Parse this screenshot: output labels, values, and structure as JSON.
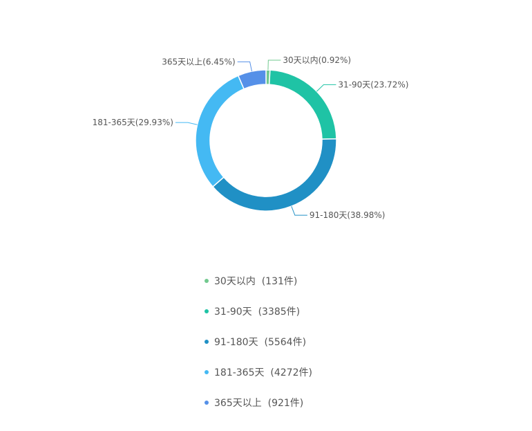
{
  "chart_data": {
    "type": "pie",
    "variant": "donut",
    "legend_position": "bottom",
    "unit": "件",
    "slices": [
      {
        "name": "30天以内",
        "value": 131,
        "percent": "0.92%",
        "color": "#72c98f",
        "label": "30天以内(0.92%)",
        "legend_text": "30天以内  (131件)"
      },
      {
        "name": "31-90天",
        "value": 3385,
        "percent": "23.72%",
        "color": "#1fc3a5",
        "label": "31-90天(23.72%)",
        "legend_text": "31-90天  (3385件)"
      },
      {
        "name": "91-180天",
        "value": 5564,
        "percent": "38.98%",
        "color": "#2090c5",
        "label": "91-180天(38.98%)",
        "legend_text": "91-180天  (5564件)"
      },
      {
        "name": "181-365天",
        "value": 4272,
        "percent": "29.93%",
        "color": "#44b9f3",
        "label": "181-365天(29.93%)",
        "legend_text": "181-365天  (4272件)"
      },
      {
        "name": "365天以上",
        "value": 921,
        "percent": "6.45%",
        "color": "#5590e8",
        "label": "365天以上(6.45%)",
        "legend_text": "365天以上  (921件)"
      }
    ]
  }
}
